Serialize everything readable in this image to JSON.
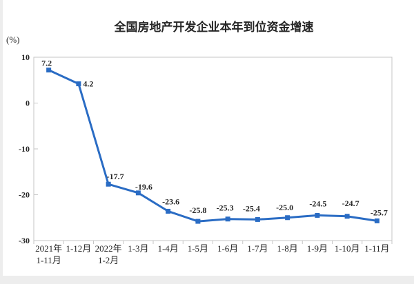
{
  "chart_data": {
    "type": "line",
    "title": "全国房地产开发企业本年到位资金增速",
    "unit_label": "(%)",
    "categories": [
      [
        "2021年",
        "1-11月"
      ],
      [
        "1-12月"
      ],
      [
        "2022年",
        "1-2月"
      ],
      [
        "1-3月"
      ],
      [
        "1-4月"
      ],
      [
        "1-5月"
      ],
      [
        "1-6月"
      ],
      [
        "1-7月"
      ],
      [
        "1-8月"
      ],
      [
        "1-9月"
      ],
      [
        "1-10月"
      ],
      [
        "1-11月"
      ]
    ],
    "values": [
      7.2,
      4.2,
      -17.7,
      -19.6,
      -23.6,
      -25.8,
      -25.3,
      -25.4,
      -25.0,
      -24.5,
      -24.7,
      -25.7
    ],
    "data_labels": [
      "7.2",
      "4.2",
      "-17.7",
      "-19.6",
      "-23.6",
      "-25.8",
      "-25.3",
      "-25.4",
      "-25.0",
      "-24.5",
      "-24.7",
      "-25.7"
    ],
    "y_axis": {
      "ticks": [
        "10",
        "0",
        "-10",
        "-20",
        "-30"
      ],
      "min": -30,
      "max": 10,
      "step": 10
    },
    "xlabel": "",
    "ylabel": "(%)",
    "grid": false,
    "legend": false,
    "marker": "square",
    "colors": {
      "line": "#2A6CC4",
      "marker": "#2A6CC4",
      "text": "#262626",
      "plot_border": "#C6C6C6",
      "page_edge": "#EDEDED",
      "background": "#FFFFFF"
    }
  }
}
